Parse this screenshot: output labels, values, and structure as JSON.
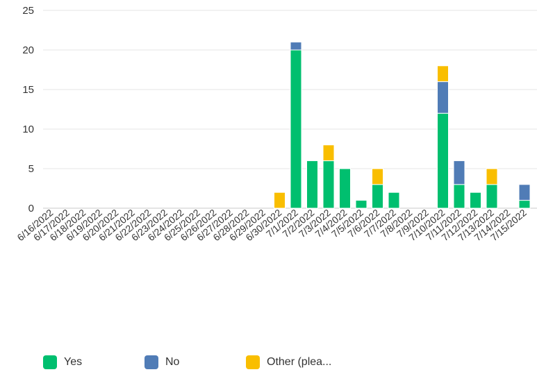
{
  "chart_data": {
    "type": "bar",
    "stacked": true,
    "title": "",
    "xlabel": "",
    "ylabel": "",
    "ylim": [
      0,
      25
    ],
    "yticks": [
      0,
      5,
      10,
      15,
      20,
      25
    ],
    "grid": true,
    "legend_position": "bottom",
    "categories": [
      "6/16/2022",
      "6/17/2022",
      "6/18/2022",
      "6/19/2022",
      "6/20/2022",
      "6/21/2022",
      "6/22/2022",
      "6/23/2022",
      "6/24/2022",
      "6/25/2022",
      "6/26/2022",
      "6/27/2022",
      "6/28/2022",
      "6/29/2022",
      "6/30/2022",
      "7/1/2022",
      "7/2/2022",
      "7/3/2022",
      "7/4/2022",
      "7/5/2022",
      "7/6/2022",
      "7/7/2022",
      "7/8/2022",
      "7/9/2022",
      "7/10/2022",
      "7/11/2022",
      "7/12/2022",
      "7/13/2022",
      "7/14/2022",
      "7/15/2022"
    ],
    "series": [
      {
        "name": "Yes",
        "color": "#00bf6f",
        "values": [
          0,
          0,
          0,
          0,
          0,
          0,
          0,
          0,
          0,
          0,
          0,
          0,
          0,
          0,
          0,
          20,
          6,
          6,
          5,
          1,
          3,
          2,
          0,
          0,
          12,
          3,
          2,
          3,
          0,
          1
        ]
      },
      {
        "name": "No",
        "color": "#507cb6",
        "values": [
          0,
          0,
          0,
          0,
          0,
          0,
          0,
          0,
          0,
          0,
          0,
          0,
          0,
          0,
          0,
          1,
          0,
          0,
          0,
          0,
          0,
          0,
          0,
          0,
          4,
          3,
          0,
          0,
          0,
          2
        ]
      },
      {
        "name": "Other (plea...",
        "color": "#f9be00",
        "values": [
          0,
          0,
          0,
          0,
          0,
          0,
          0,
          0,
          0,
          0,
          0,
          0,
          0,
          0,
          2,
          0,
          0,
          2,
          0,
          0,
          2,
          0,
          0,
          0,
          2,
          0,
          0,
          2,
          0,
          0
        ]
      }
    ]
  }
}
